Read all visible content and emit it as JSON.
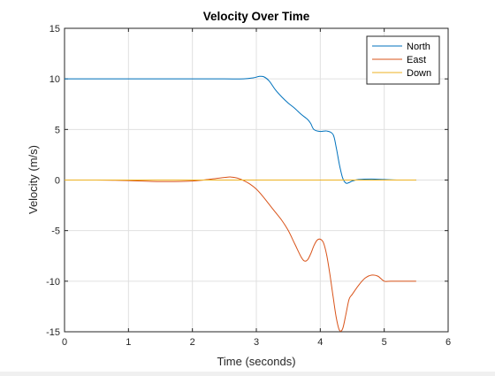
{
  "chart_data": {
    "type": "line",
    "title": "Velocity Over Time",
    "xlabel": "Time (seconds)",
    "ylabel": "Velocity (m/s)",
    "xlim": [
      0,
      6
    ],
    "ylim": [
      -15,
      15
    ],
    "xticks": [
      0,
      1,
      2,
      3,
      4,
      5,
      6
    ],
    "yticks": [
      -15,
      -10,
      -5,
      0,
      5,
      10,
      15
    ],
    "xtick_labels": [
      "0",
      "1",
      "2",
      "3",
      "4",
      "5",
      "6"
    ],
    "ytick_labels": [
      "-15",
      "-10",
      "-5",
      "0",
      "5",
      "10",
      "15"
    ],
    "grid": true,
    "legend_position": "top-right",
    "series": [
      {
        "name": "North",
        "color": "#0072BD",
        "x": [
          0,
          0.5,
          1,
          1.5,
          2,
          2.5,
          2.8,
          2.95,
          3.05,
          3.12,
          3.2,
          3.3,
          3.4,
          3.5,
          3.6,
          3.7,
          3.8,
          3.85,
          3.9,
          4.0,
          4.1,
          4.2,
          4.25,
          4.3,
          4.35,
          4.4,
          4.45,
          4.5,
          4.6,
          4.8,
          5.0,
          5.2,
          5.5
        ],
        "y": [
          10,
          10,
          10,
          10,
          10,
          10,
          10,
          10.1,
          10.25,
          10.2,
          9.8,
          8.9,
          8.2,
          7.6,
          7.1,
          6.5,
          6.0,
          5.6,
          5.0,
          4.8,
          4.85,
          4.5,
          3.2,
          1.5,
          0.2,
          -0.3,
          -0.25,
          -0.1,
          0.05,
          0.1,
          0.05,
          0,
          0
        ]
      },
      {
        "name": "East",
        "color": "#D95319",
        "x": [
          0,
          0.5,
          1,
          1.5,
          2,
          2.3,
          2.5,
          2.6,
          2.7,
          2.8,
          2.9,
          3.0,
          3.1,
          3.2,
          3.3,
          3.4,
          3.5,
          3.6,
          3.7,
          3.75,
          3.8,
          3.85,
          3.9,
          3.95,
          4.0,
          4.05,
          4.1,
          4.15,
          4.2,
          4.25,
          4.3,
          4.35,
          4.4,
          4.45,
          4.5,
          4.6,
          4.7,
          4.8,
          4.9,
          5.0,
          5.1,
          5.5
        ],
        "y": [
          0,
          0,
          -0.05,
          -0.15,
          -0.1,
          0.1,
          0.25,
          0.3,
          0.2,
          -0.05,
          -0.4,
          -0.9,
          -1.6,
          -2.4,
          -3.2,
          -4.0,
          -5.0,
          -6.3,
          -7.6,
          -8.0,
          -7.9,
          -7.3,
          -6.5,
          -5.95,
          -5.85,
          -6.2,
          -7.4,
          -9.3,
          -11.5,
          -13.6,
          -14.85,
          -14.7,
          -13.3,
          -11.8,
          -11.3,
          -10.4,
          -9.7,
          -9.4,
          -9.5,
          -10.0,
          -10.0,
          -10.0
        ]
      },
      {
        "name": "Down",
        "color": "#EDB120",
        "x": [
          0,
          5.5
        ],
        "y": [
          0,
          0
        ]
      }
    ]
  }
}
